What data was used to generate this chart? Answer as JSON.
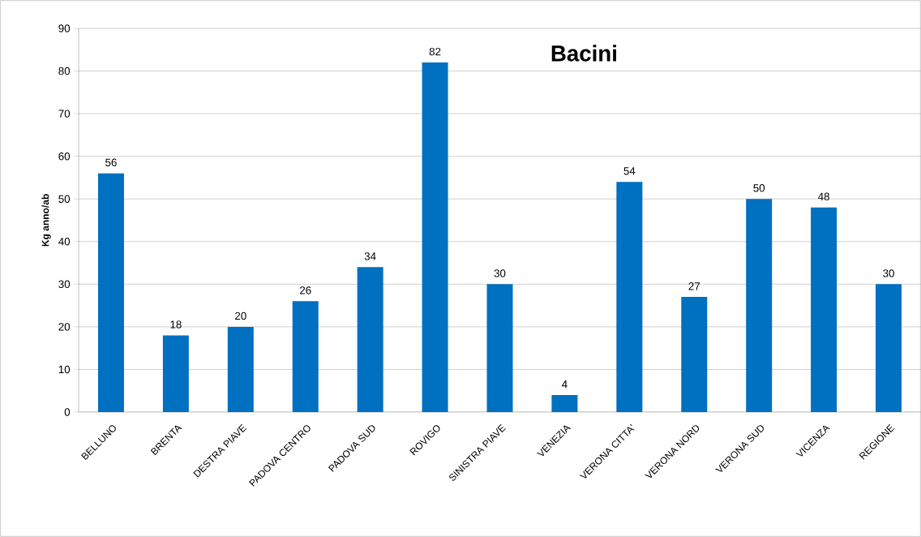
{
  "chart_data": {
    "type": "bar",
    "title": "Bacini",
    "ylabel": "Kg anno/ab",
    "categories": [
      "BELLUNO",
      "BRENTA",
      "DESTRA PIAVE",
      "PADOVA CENTRO",
      "PADOVA SUD",
      "ROVIGO",
      "SINISTRA PIAVE",
      "VENEZIA",
      "VERONA CITTA'",
      "VERONA NORD",
      "VERONA SUD",
      "VICENZA",
      "REGIONE"
    ],
    "values": [
      56,
      18,
      20,
      26,
      34,
      82,
      30,
      4,
      54,
      27,
      50,
      48,
      30
    ],
    "color": "#0070c0",
    "ylim": [
      0,
      90
    ],
    "yticks": [
      0,
      10,
      20,
      30,
      40,
      50,
      60,
      70,
      80,
      90
    ],
    "grid": "y",
    "data_labels": true
  }
}
